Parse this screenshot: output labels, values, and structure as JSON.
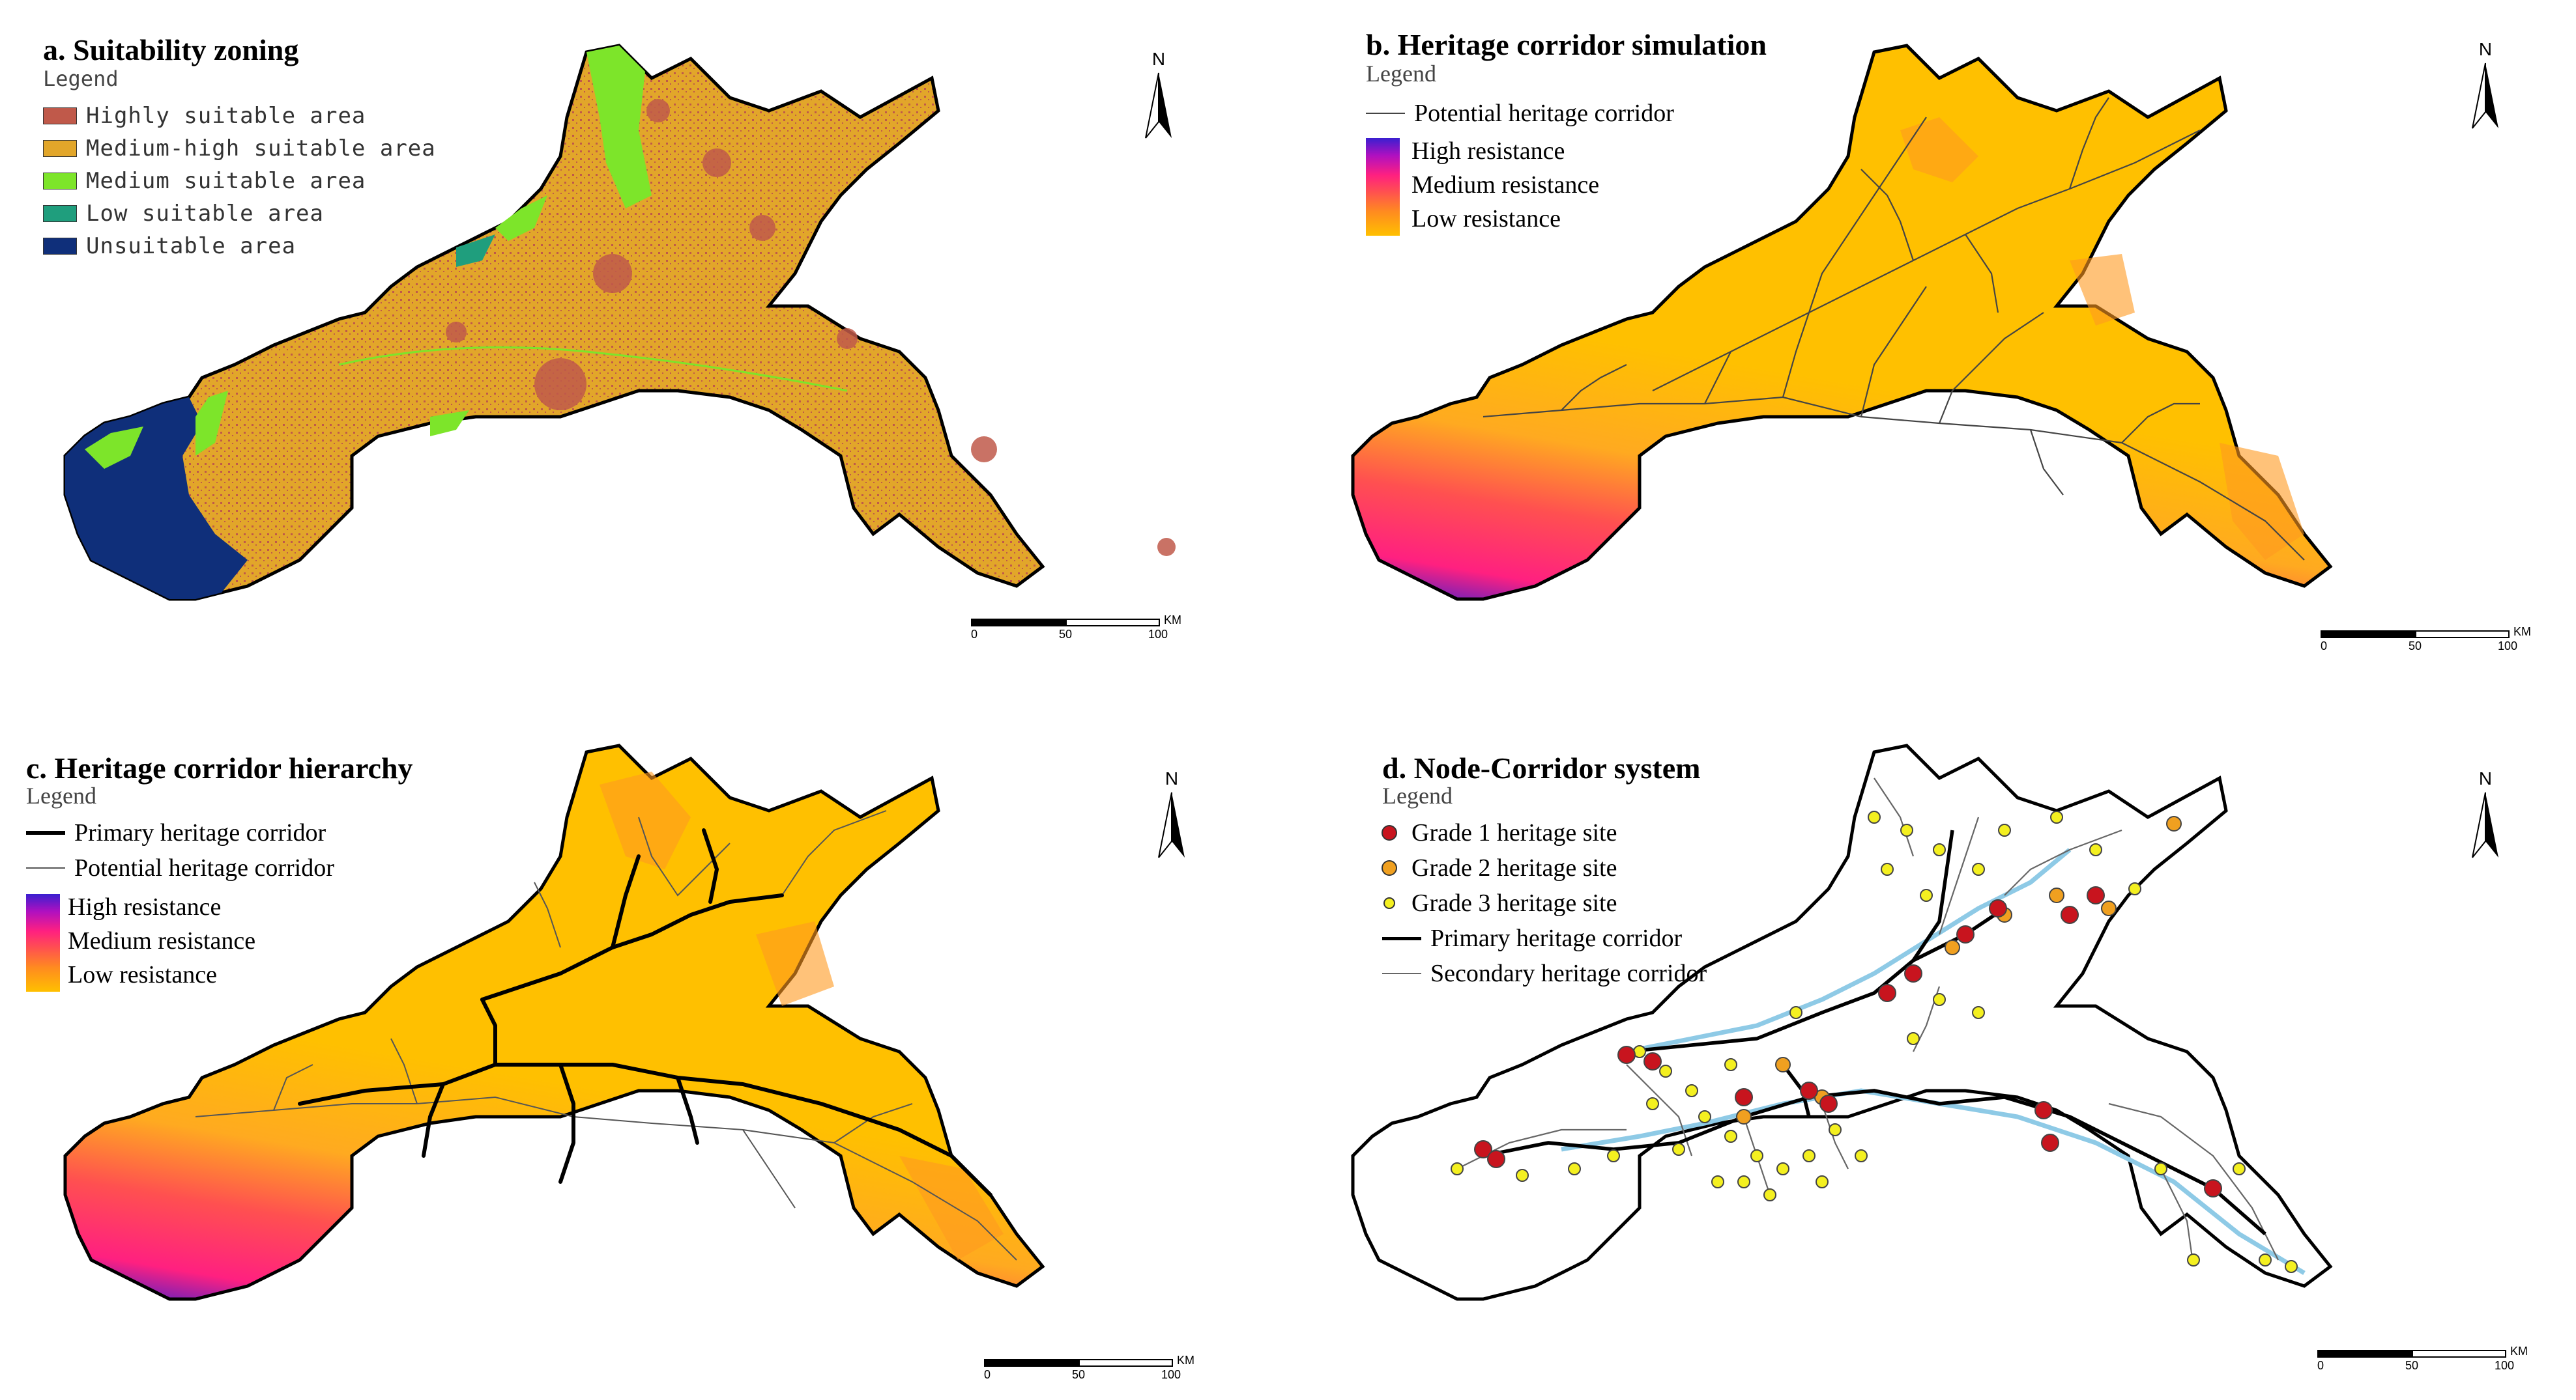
{
  "panels": {
    "a": {
      "title": "a. Suitability zoning",
      "legend_heading": "Legend",
      "legend": [
        {
          "label": "Highly suitable area",
          "color": "#c0594a"
        },
        {
          "label": "Medium-high suitable area",
          "color": "#e2a62a"
        },
        {
          "label": "Medium suitable area",
          "color": "#7de52a"
        },
        {
          "label": "Low suitable area",
          "color": "#1f9e7d"
        },
        {
          "label": "Unsuitable area",
          "color": "#0f2f7a"
        }
      ]
    },
    "b": {
      "title": "b. Heritage corridor simulation",
      "legend_heading": "Legend",
      "line_label": "Potential heritage corridor",
      "gradient_labels": [
        "High resistance",
        "Medium resistance",
        "Low resistance"
      ]
    },
    "c": {
      "title": "c. Heritage corridor hierarchy",
      "legend_heading": "Legend",
      "primary_label": "Primary heritage corridor",
      "potential_label": "Potential heritage corridor",
      "gradient_labels": [
        "High resistance",
        "Medium resistance",
        "Low resistance"
      ]
    },
    "d": {
      "title": "d. Node-Corridor system",
      "legend_heading": "Legend",
      "sites": [
        {
          "label": "Grade 1 heritage site",
          "color": "#c8141e"
        },
        {
          "label": "Grade 2 heritage site",
          "color": "#f0a020"
        },
        {
          "label": "Grade 3 heritage site",
          "color": "#f4f020"
        }
      ],
      "primary_label": "Primary heritage corridor",
      "secondary_label": "Secondary heritage corridor"
    }
  },
  "north_label": "N",
  "scale": {
    "ticks": [
      "0",
      "50",
      "100"
    ],
    "unit": "KM"
  },
  "colors": {
    "resistance_low": "#ffc000",
    "resistance_mid": "#ff8a20",
    "resistance_high": "#3a1fd0",
    "river": "#8ecae6",
    "corridor": "#222222"
  }
}
